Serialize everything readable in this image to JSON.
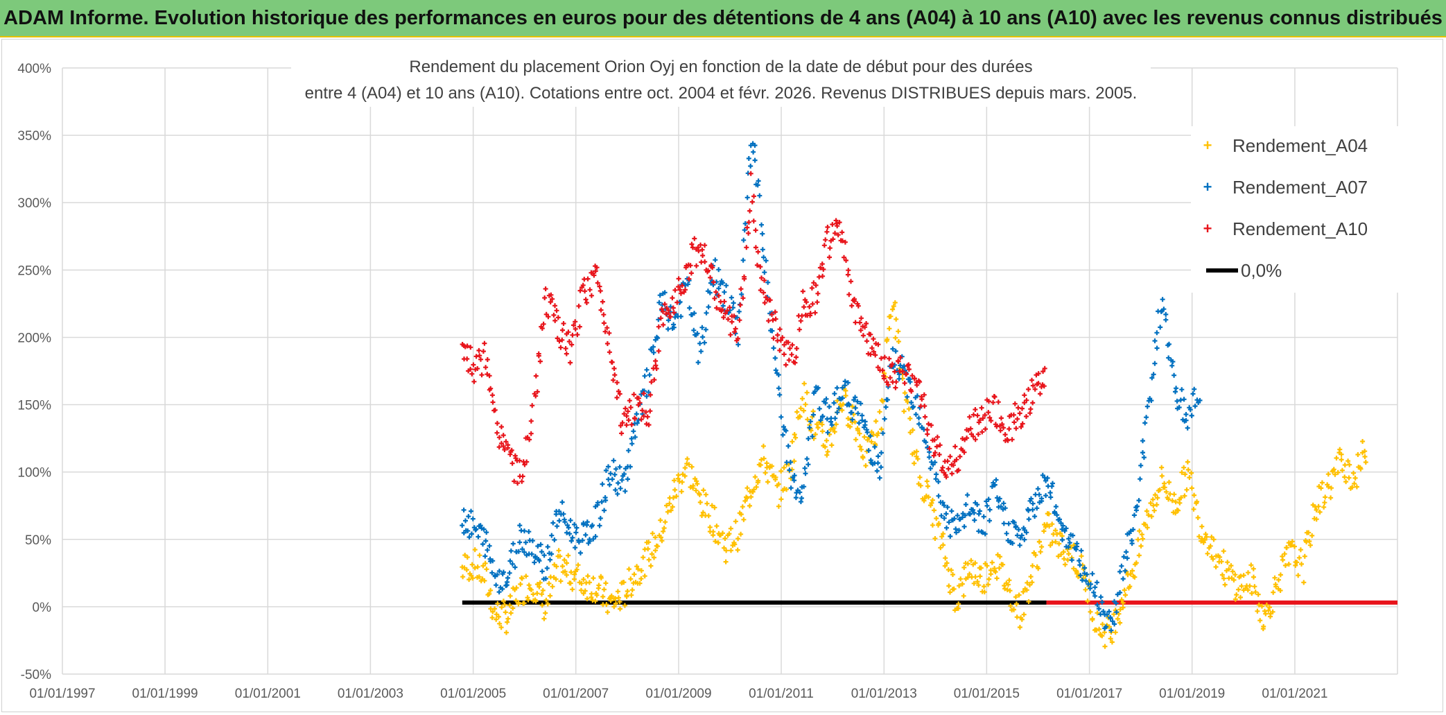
{
  "header": {
    "title": "ADAM Informe. Evolution historique des performances en euros pour des détentions de 4 ans (A04) à 10 ans (A10) avec les revenus connus distribués"
  },
  "chart_data": {
    "type": "scatter",
    "title_lines": [
      "Rendement du placement Orion Oyj en fonction de la date de début pour des durées",
      "entre 4 (A04) et 10 ans (A10). Cotations entre oct. 2004 et févr. 2026. Revenus DISTRIBUES depuis mars. 2005."
    ],
    "xlabel": "",
    "ylabel": "",
    "x_ticks": [
      "01/01/1997",
      "01/01/1999",
      "01/01/2001",
      "01/01/2003",
      "01/01/2005",
      "01/01/2007",
      "01/01/2009",
      "01/01/2011",
      "01/01/2013",
      "01/01/2015",
      "01/01/2017",
      "01/01/2019",
      "01/01/2021"
    ],
    "xlim": [
      "1997-01-01",
      "2023-01-01"
    ],
    "y_ticks": [
      "400%",
      "350%",
      "300%",
      "250%",
      "200%",
      "150%",
      "100%",
      "50%",
      "0%",
      "-50%"
    ],
    "ylim": [
      -50,
      400
    ],
    "grid": true,
    "legend_position": "top-right",
    "colors": {
      "A04": "#ffc000",
      "A07": "#0070c0",
      "A10": "#e8141b",
      "zero": "#000000",
      "grid": "#d9d9d9"
    },
    "series": [
      {
        "name": "Rendement_A04",
        "points": [
          [
            "2004-10-15",
            28
          ],
          [
            "2005-01-01",
            32
          ],
          [
            "2005-04-01",
            22
          ],
          [
            "2005-06-01",
            -5
          ],
          [
            "2005-09-01",
            -8
          ],
          [
            "2005-12-01",
            12
          ],
          [
            "2006-03-01",
            18
          ],
          [
            "2006-06-01",
            0
          ],
          [
            "2006-09-01",
            30
          ],
          [
            "2006-12-01",
            25
          ],
          [
            "2007-03-01",
            18
          ],
          [
            "2007-06-01",
            15
          ],
          [
            "2007-09-01",
            2
          ],
          [
            "2007-12-01",
            8
          ],
          [
            "2008-03-01",
            25
          ],
          [
            "2008-06-01",
            38
          ],
          [
            "2008-09-01",
            55
          ],
          [
            "2008-12-01",
            85
          ],
          [
            "2009-03-01",
            105
          ],
          [
            "2009-06-01",
            80
          ],
          [
            "2009-09-01",
            65
          ],
          [
            "2009-12-01",
            45
          ],
          [
            "2010-03-01",
            55
          ],
          [
            "2010-06-01",
            90
          ],
          [
            "2010-09-01",
            110
          ],
          [
            "2010-12-01",
            85
          ],
          [
            "2011-03-01",
            100
          ],
          [
            "2011-06-01",
            160
          ],
          [
            "2011-09-01",
            130
          ],
          [
            "2011-12-01",
            120
          ],
          [
            "2012-03-01",
            155
          ],
          [
            "2012-06-01",
            140
          ],
          [
            "2012-09-01",
            110
          ],
          [
            "2012-12-01",
            135
          ],
          [
            "2013-03-01",
            230
          ],
          [
            "2013-06-01",
            150
          ],
          [
            "2013-09-01",
            100
          ],
          [
            "2013-12-01",
            75
          ],
          [
            "2014-03-01",
            40
          ],
          [
            "2014-06-01",
            5
          ],
          [
            "2014-09-01",
            30
          ],
          [
            "2014-12-01",
            20
          ],
          [
            "2015-03-01",
            35
          ],
          [
            "2015-06-01",
            15
          ],
          [
            "2015-09-01",
            -5
          ],
          [
            "2015-12-01",
            30
          ],
          [
            "2016-03-01",
            60
          ],
          [
            "2016-06-01",
            45
          ],
          [
            "2016-09-01",
            40
          ],
          [
            "2016-12-01",
            20
          ],
          [
            "2017-03-01",
            -15
          ],
          [
            "2017-06-01",
            -20
          ],
          [
            "2017-09-01",
            10
          ],
          [
            "2017-12-01",
            35
          ],
          [
            "2018-03-01",
            70
          ],
          [
            "2018-06-01",
            95
          ],
          [
            "2018-09-01",
            75
          ],
          [
            "2018-12-01",
            100
          ],
          [
            "2019-03-01",
            60
          ],
          [
            "2019-06-01",
            45
          ],
          [
            "2019-09-01",
            25
          ],
          [
            "2019-12-01",
            15
          ],
          [
            "2020-03-01",
            20
          ],
          [
            "2020-06-01",
            -10
          ],
          [
            "2020-09-01",
            20
          ],
          [
            "2020-12-01",
            40
          ],
          [
            "2021-03-01",
            30
          ],
          [
            "2021-06-01",
            75
          ],
          [
            "2021-09-01",
            90
          ],
          [
            "2021-12-01",
            110
          ],
          [
            "2022-03-01",
            95
          ],
          [
            "2022-06-01",
            120
          ]
        ]
      },
      {
        "name": "Rendement_A07",
        "points": [
          [
            "2004-10-15",
            68
          ],
          [
            "2005-01-01",
            58
          ],
          [
            "2005-04-01",
            48
          ],
          [
            "2005-06-01",
            25
          ],
          [
            "2005-09-01",
            20
          ],
          [
            "2005-12-01",
            55
          ],
          [
            "2006-03-01",
            45
          ],
          [
            "2006-06-01",
            30
          ],
          [
            "2006-09-01",
            70
          ],
          [
            "2006-12-01",
            55
          ],
          [
            "2007-03-01",
            50
          ],
          [
            "2007-06-01",
            65
          ],
          [
            "2007-09-01",
            100
          ],
          [
            "2007-12-01",
            90
          ],
          [
            "2008-03-01",
            130
          ],
          [
            "2008-06-01",
            170
          ],
          [
            "2008-09-01",
            225
          ],
          [
            "2008-12-01",
            210
          ],
          [
            "2009-03-01",
            240
          ],
          [
            "2009-06-01",
            185
          ],
          [
            "2009-09-01",
            250
          ],
          [
            "2009-12-01",
            230
          ],
          [
            "2010-03-01",
            205
          ],
          [
            "2010-06-01",
            350
          ],
          [
            "2010-08-01",
            300
          ],
          [
            "2010-10-01",
            230
          ],
          [
            "2011-01-01",
            140
          ],
          [
            "2011-04-01",
            90
          ],
          [
            "2011-06-01",
            80
          ],
          [
            "2011-09-01",
            155
          ],
          [
            "2011-12-01",
            140
          ],
          [
            "2012-03-01",
            160
          ],
          [
            "2012-06-01",
            150
          ],
          [
            "2012-09-01",
            130
          ],
          [
            "2012-12-01",
            100
          ],
          [
            "2013-03-01",
            185
          ],
          [
            "2013-06-01",
            170
          ],
          [
            "2013-09-01",
            150
          ],
          [
            "2013-12-01",
            110
          ],
          [
            "2014-03-01",
            70
          ],
          [
            "2014-06-01",
            55
          ],
          [
            "2014-09-01",
            75
          ],
          [
            "2014-12-01",
            60
          ],
          [
            "2015-03-01",
            85
          ],
          [
            "2015-06-01",
            60
          ],
          [
            "2015-09-01",
            50
          ],
          [
            "2015-12-01",
            75
          ],
          [
            "2016-03-01",
            95
          ],
          [
            "2016-06-01",
            65
          ],
          [
            "2016-09-01",
            45
          ],
          [
            "2016-12-01",
            25
          ],
          [
            "2017-03-01",
            10
          ],
          [
            "2017-06-01",
            -15
          ],
          [
            "2017-09-01",
            30
          ],
          [
            "2017-12-01",
            70
          ],
          [
            "2018-03-01",
            150
          ],
          [
            "2018-06-01",
            230
          ],
          [
            "2018-09-01",
            160
          ],
          [
            "2018-12-01",
            140
          ],
          [
            "2019-03-01",
            165
          ]
        ]
      },
      {
        "name": "Rendement_A10",
        "points": [
          [
            "2004-10-15",
            195
          ],
          [
            "2005-01-01",
            175
          ],
          [
            "2005-04-01",
            185
          ],
          [
            "2005-06-01",
            140
          ],
          [
            "2005-09-01",
            115
          ],
          [
            "2005-12-01",
            95
          ],
          [
            "2006-03-01",
            140
          ],
          [
            "2006-06-01",
            230
          ],
          [
            "2006-09-01",
            205
          ],
          [
            "2006-12-01",
            190
          ],
          [
            "2007-03-01",
            235
          ],
          [
            "2007-06-01",
            245
          ],
          [
            "2007-09-01",
            195
          ],
          [
            "2007-12-01",
            135
          ],
          [
            "2008-03-01",
            150
          ],
          [
            "2008-06-01",
            145
          ],
          [
            "2008-09-01",
            210
          ],
          [
            "2008-12-01",
            230
          ],
          [
            "2009-03-01",
            250
          ],
          [
            "2009-06-01",
            270
          ],
          [
            "2009-09-01",
            240
          ],
          [
            "2009-12-01",
            215
          ],
          [
            "2010-03-01",
            200
          ],
          [
            "2010-06-01",
            310
          ],
          [
            "2010-08-01",
            250
          ],
          [
            "2010-10-01",
            220
          ],
          [
            "2011-01-01",
            195
          ],
          [
            "2011-04-01",
            185
          ],
          [
            "2011-06-01",
            225
          ],
          [
            "2011-09-01",
            230
          ],
          [
            "2011-12-01",
            270
          ],
          [
            "2012-03-01",
            280
          ],
          [
            "2012-06-01",
            220
          ],
          [
            "2012-09-01",
            200
          ],
          [
            "2012-12-01",
            185
          ],
          [
            "2013-03-01",
            170
          ],
          [
            "2013-06-01",
            175
          ],
          [
            "2013-09-01",
            165
          ],
          [
            "2013-12-01",
            125
          ],
          [
            "2014-03-01",
            105
          ],
          [
            "2014-06-01",
            110
          ],
          [
            "2014-09-01",
            130
          ],
          [
            "2014-12-01",
            140
          ],
          [
            "2015-03-01",
            145
          ],
          [
            "2015-06-01",
            130
          ],
          [
            "2015-09-01",
            145
          ],
          [
            "2015-12-01",
            160
          ],
          [
            "2016-03-01",
            175
          ]
        ]
      },
      {
        "name": "0,0%",
        "type": "line",
        "segments": [
          {
            "from": "2004-10-15",
            "to": "2016-03-01",
            "value": 0,
            "color": "#000000"
          },
          {
            "from": "2016-03-01",
            "to": "2023-01-01",
            "value": 0,
            "color": "#e8141b"
          }
        ]
      }
    ]
  }
}
